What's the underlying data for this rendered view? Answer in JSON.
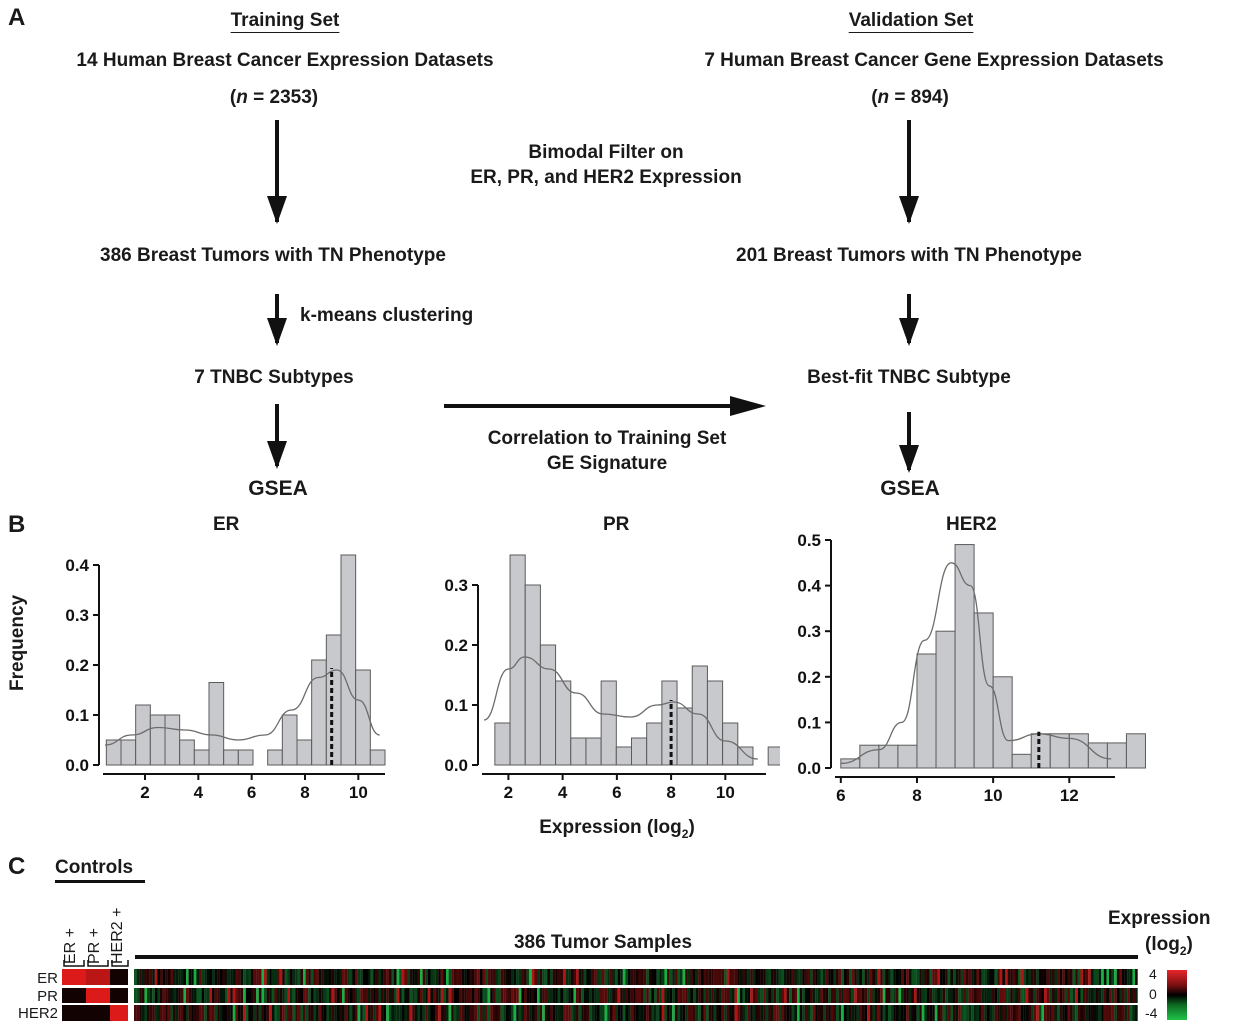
{
  "panel_labels": {
    "a": "A",
    "b": "B",
    "c": "C"
  },
  "flow": {
    "training": {
      "header": "Training Set",
      "datasets": "14 Human Breast Cancer Expression Datasets",
      "n_open": "(",
      "n_var": "n",
      "n_val": " = 2353)",
      "tn": "386 Breast Tumors with TN Phenotype",
      "clustering": "k-means clustering",
      "subtypes": "7 TNBC Subtypes",
      "gsea": "GSEA"
    },
    "validation": {
      "header": "Validation Set",
      "datasets": "7 Human Breast Cancer Gene Expression Datasets",
      "n_open": "(",
      "n_var": "n",
      "n_val": " = 894)",
      "tn": "201 Breast Tumors with TN Phenotype",
      "bestfit": "Best-fit TNBC Subtype",
      "gsea": "GSEA"
    },
    "bimodal": [
      "Bimodal Filter on",
      "ER, PR, and HER2 Expression"
    ],
    "correlation": [
      "Correlation to Training Set",
      "GE Signature"
    ]
  },
  "histograms": {
    "ylabel": "Frequency",
    "xlabel": "Expression (log",
    "xlabel_sub": "2",
    "xlabel_close": ")"
  },
  "chart_data": [
    {
      "type": "bar",
      "title": "ER",
      "ylabel": "Frequency",
      "xlabel": "",
      "xlim": [
        0.5,
        11
      ],
      "ylim": [
        0,
        0.42
      ],
      "xticks": [
        2,
        4,
        6,
        8,
        10
      ],
      "yticks": [
        0.0,
        0.1,
        0.2,
        0.3,
        0.4
      ],
      "bin_width": 0.55,
      "bin_start": 0.55,
      "values": [
        0.05,
        0.05,
        0.12,
        0.1,
        0.1,
        0.05,
        0.03,
        0.165,
        0.03,
        0.03,
        0.0,
        0.03,
        0.1,
        0.05,
        0.21,
        0.26,
        0.42,
        0.19,
        0.03
      ],
      "threshold": 9.0,
      "curve": [
        [
          0.5,
          0.04
        ],
        [
          1.5,
          0.06
        ],
        [
          2.5,
          0.075
        ],
        [
          3.5,
          0.07
        ],
        [
          4.5,
          0.06
        ],
        [
          5.5,
          0.05
        ],
        [
          6.5,
          0.06
        ],
        [
          7.5,
          0.11
        ],
        [
          8.5,
          0.175
        ],
        [
          9.2,
          0.19
        ],
        [
          10,
          0.13
        ],
        [
          10.8,
          0.06
        ]
      ]
    },
    {
      "type": "bar",
      "title": "PR",
      "ylabel": "",
      "xlabel": "Expression (log2)",
      "xlim": [
        1.1,
        11.5
      ],
      "ylim": [
        0,
        0.35
      ],
      "xticks": [
        2,
        4,
        6,
        8,
        10
      ],
      "yticks": [
        0.0,
        0.1,
        0.2,
        0.3
      ],
      "bin_width": 0.56,
      "bin_start": 1.5,
      "values": [
        0.07,
        0.35,
        0.3,
        0.2,
        0.14,
        0.045,
        0.045,
        0.14,
        0.03,
        0.045,
        0.07,
        0.14,
        0.095,
        0.165,
        0.14,
        0.07,
        0.03,
        0.0,
        0.03
      ],
      "threshold": 8.0,
      "curve": [
        [
          1.1,
          0.075
        ],
        [
          2,
          0.16
        ],
        [
          2.6,
          0.18
        ],
        [
          3.5,
          0.16
        ],
        [
          4.5,
          0.12
        ],
        [
          5.5,
          0.085
        ],
        [
          6.5,
          0.08
        ],
        [
          7.5,
          0.1
        ],
        [
          8.1,
          0.105
        ],
        [
          9,
          0.085
        ],
        [
          10,
          0.04
        ],
        [
          11.2,
          0.01
        ]
      ]
    },
    {
      "type": "bar",
      "title": "HER2",
      "ylabel": "",
      "xlabel": "",
      "xlim": [
        5.9,
        13.2
      ],
      "ylim": [
        0,
        0.5
      ],
      "xticks": [
        6,
        8,
        10,
        12
      ],
      "yticks": [
        0.0,
        0.1,
        0.2,
        0.3,
        0.4,
        0.5
      ],
      "bin_width": 0.5,
      "bin_start": 6,
      "values": [
        0.02,
        0.05,
        0.05,
        0.05,
        0.25,
        0.3,
        0.49,
        0.34,
        0.2,
        0.03,
        0.075,
        0.075,
        0.075,
        0.055,
        0.055,
        0.075
      ],
      "threshold": 11.2,
      "curve": [
        [
          6,
          0.01
        ],
        [
          7,
          0.04
        ],
        [
          7.6,
          0.1
        ],
        [
          8.2,
          0.28
        ],
        [
          8.9,
          0.45
        ],
        [
          9.4,
          0.4
        ],
        [
          9.9,
          0.18
        ],
        [
          10.4,
          0.06
        ],
        [
          11.2,
          0.075
        ],
        [
          12,
          0.065
        ],
        [
          13.1,
          0.02
        ]
      ]
    }
  ],
  "heatmap": {
    "controls_label": "Controls",
    "control_cols": [
      "ER +",
      "PR +",
      "HER2 +"
    ],
    "samples_label": "386 Tumor Samples",
    "rows": [
      "ER",
      "PR",
      "HER2"
    ],
    "legend_title": "Expression",
    "legend_sub": "(log",
    "legend_sub2": "2",
    "legend_close": ")",
    "legend_ticks": [
      "4",
      "0",
      "-4"
    ]
  },
  "colors": {
    "bar_fill": "#c8c9cc",
    "bar_edge": "#5b5b5b",
    "arrow": "#111111",
    "heat_high": "#e8262b",
    "heat_low": "#1fc24a"
  }
}
